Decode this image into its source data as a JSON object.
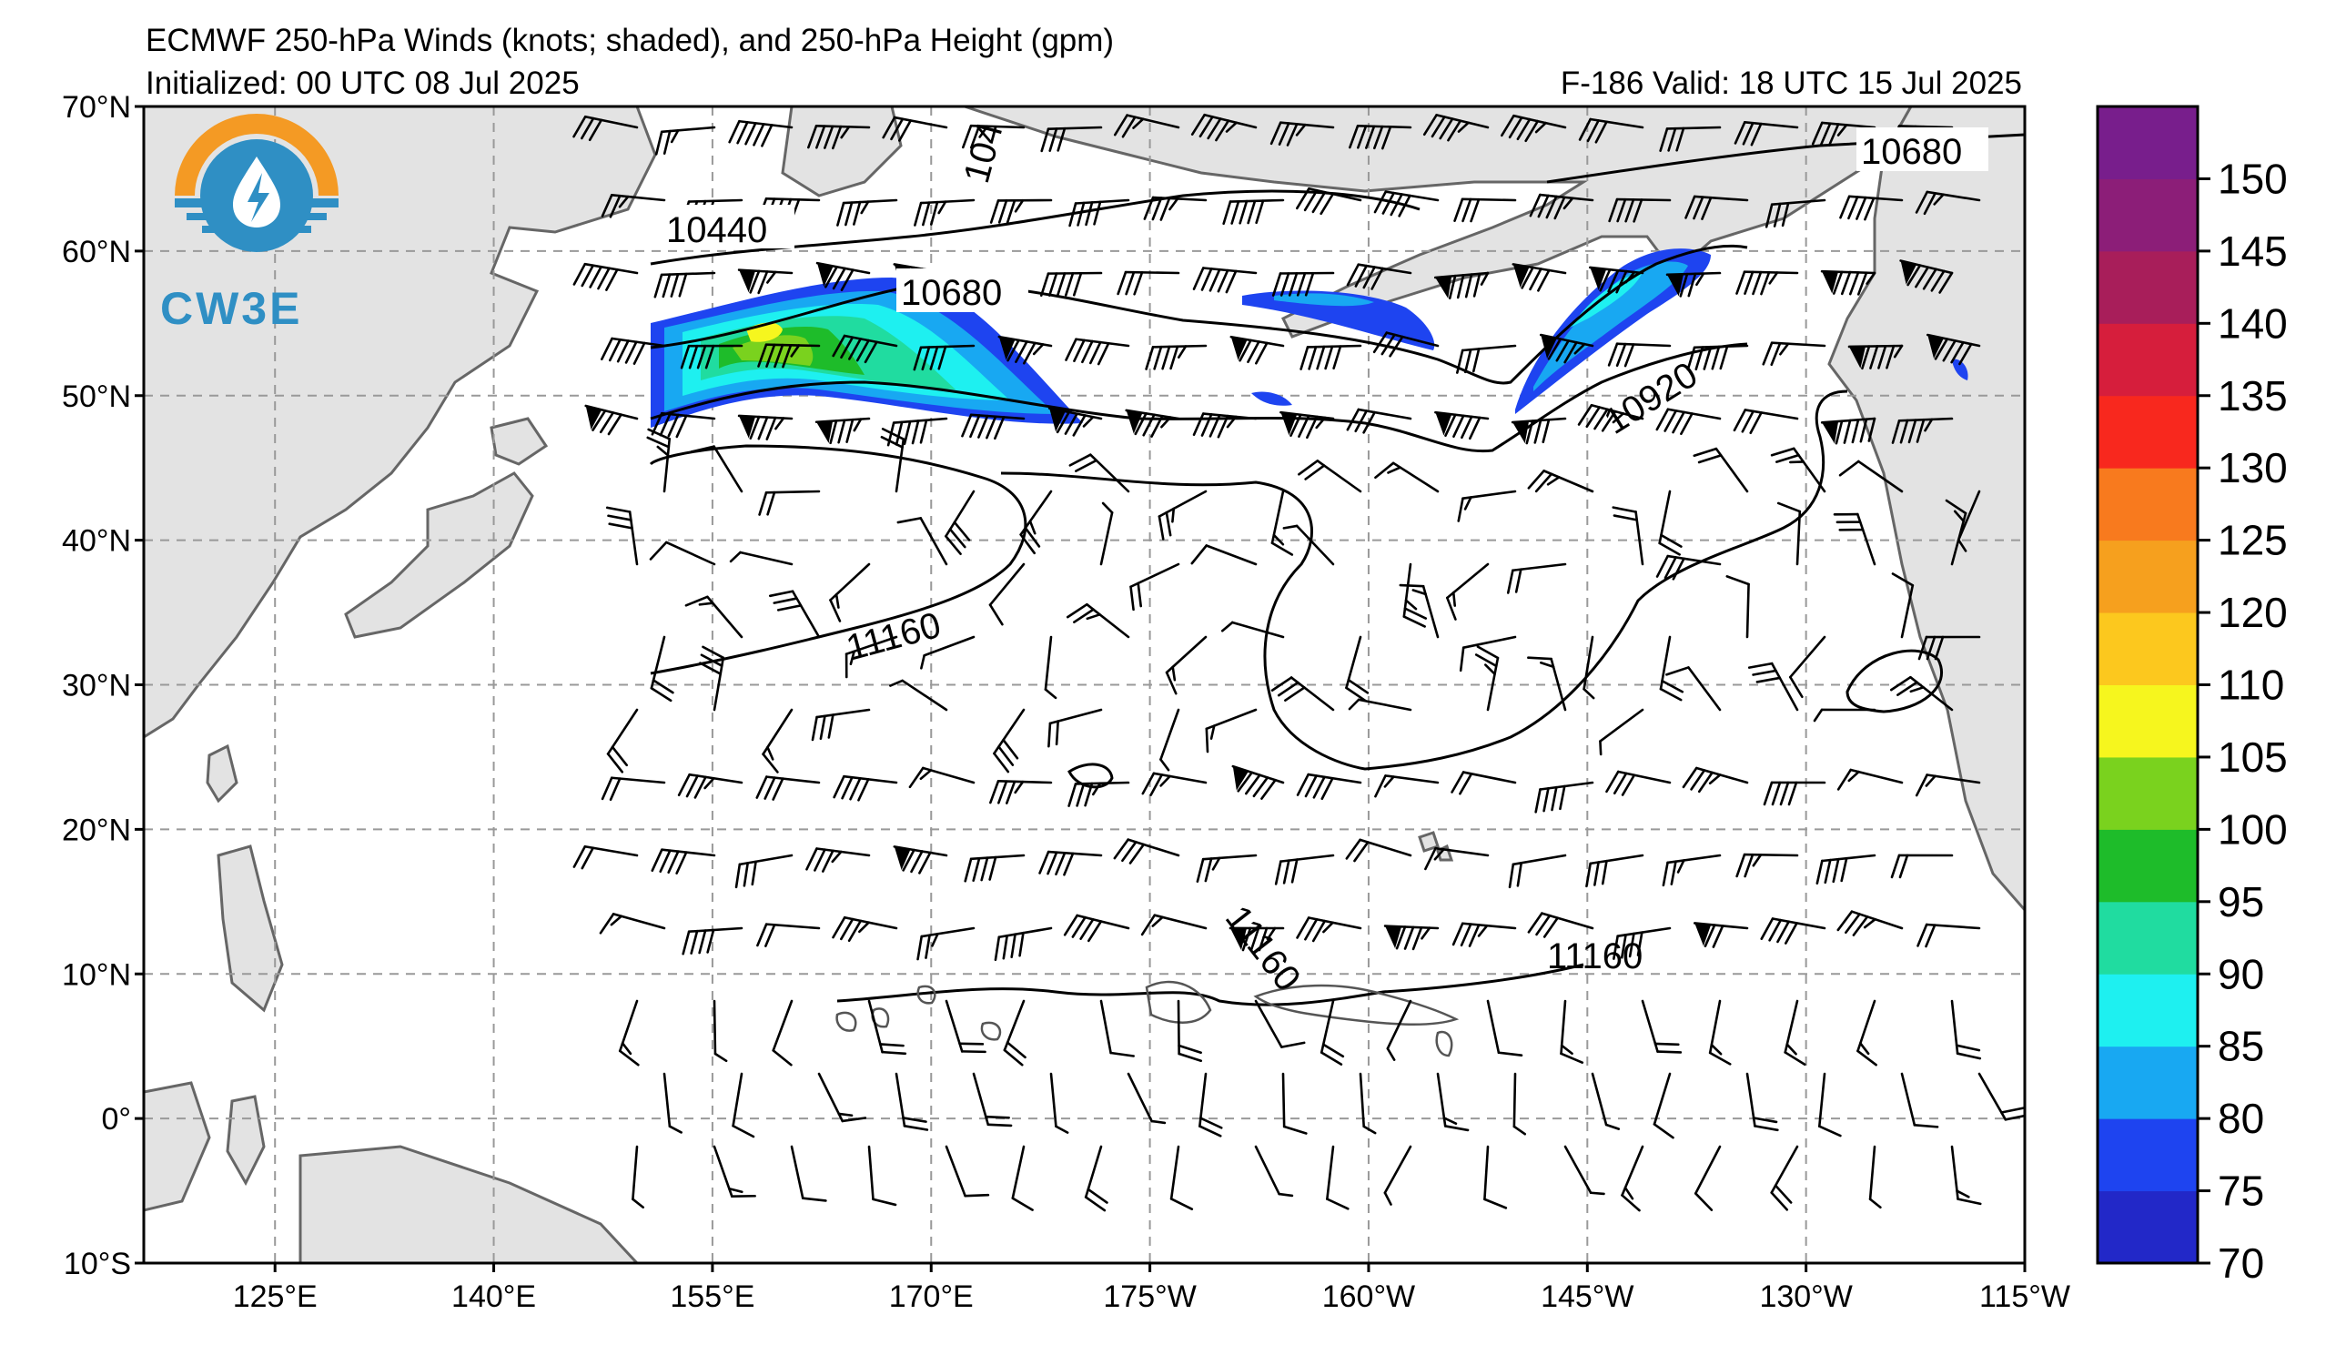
{
  "header": {
    "title": "ECMWF 250-hPa Winds (knots; shaded), and 250-hPa Height (gpm)",
    "initialized": "Initialized: 00 UTC 08 Jul 2025",
    "valid": "F-186  Valid: 18 UTC 15 Jul 2025"
  },
  "logo": {
    "text": "CW3E"
  },
  "axes": {
    "lat_labels": [
      "70°N",
      "60°N",
      "50°N",
      "40°N",
      "30°N",
      "20°N",
      "10°N",
      "0°",
      "10°S"
    ],
    "lon_labels": [
      "125°E",
      "140°E",
      "155°E",
      "170°E",
      "175°W",
      "160°W",
      "145°W",
      "130°W",
      "115°W"
    ]
  },
  "colorbar": {
    "ticks": [
      "70",
      "75",
      "80",
      "85",
      "90",
      "95",
      "100",
      "105",
      "110",
      "120",
      "125",
      "130",
      "135",
      "140",
      "145",
      "150"
    ],
    "colors": [
      "#2228c8",
      "#1e44f0",
      "#18a8f2",
      "#1ef0f0",
      "#20dca0",
      "#1ebc2a",
      "#7ad21e",
      "#f6f61e",
      "#fcc81e",
      "#f6a01e",
      "#f87a1e",
      "#f8281e",
      "#d61e3c",
      "#a81e5a",
      "#8c1e78",
      "#781e8c"
    ]
  },
  "contour_labels": {
    "c1": "10440",
    "c2": "10680",
    "c3": "10680",
    "c4": "10920",
    "c5": "11160",
    "c6": "11160",
    "c7": "11160",
    "c8": "104"
  }
}
